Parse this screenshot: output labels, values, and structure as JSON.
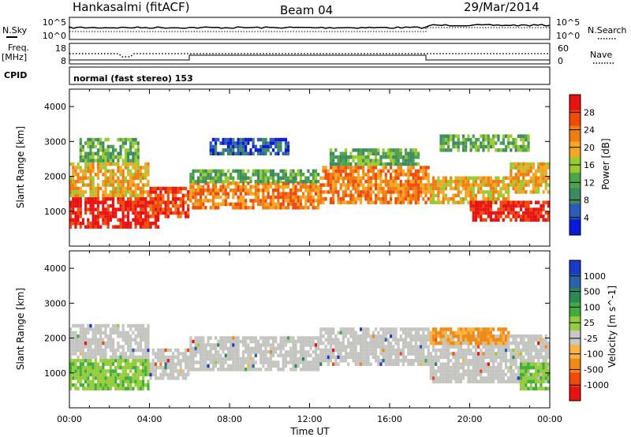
{
  "header": {
    "station": "Hankasalmi (fitACF)",
    "beam": "Beam 04",
    "date": "29/Mar/2014"
  },
  "strip_panels": {
    "noise_left_label": "N.Sky",
    "noise_left_ticks": [
      "10^5",
      "10^0"
    ],
    "noise_right_label": "N.Search",
    "noise_right_ticks": [
      "10^5",
      "10^0"
    ],
    "freq_left_label_1": "Freq.",
    "freq_left_label_2": "[MHz]",
    "freq_left_ticks": [
      "18",
      "8"
    ],
    "freq_right_label": "Nave",
    "freq_right_ticks": [
      "60",
      "0"
    ],
    "cpid_label": "CPID",
    "cpid_text": "normal (fast stereo) 153"
  },
  "colors": {
    "power_scale": [
      "#0a18d8",
      "#2b5bb8",
      "#3d8a62",
      "#4fa34a",
      "#9acb2e",
      "#f5a623",
      "#f07c10",
      "#f04a0a",
      "#e81212"
    ],
    "velocity_scale": [
      "#e81212",
      "#f04a0a",
      "#f08a14",
      "#f5b445",
      "#c8c8c8",
      "#96cc3c",
      "#3fae3f",
      "#2a8a55",
      "#2a64a8",
      "#1a3ac8"
    ],
    "ground_scatter": "#c4c4c0"
  },
  "chart_data": [
    {
      "type": "heatmap",
      "panel": "power",
      "ylabel": "Slant Range [km]",
      "y_ticks": [
        "1000",
        "2000",
        "3000",
        "4000"
      ],
      "ylim": [
        0,
        4500
      ],
      "x_ticks": [
        "00:00",
        "04:00",
        "08:00",
        "12:00",
        "16:00",
        "20:00",
        "00:00"
      ],
      "xlim_hours": [
        0,
        24
      ],
      "colorbar_label": "Power [dB]",
      "colorbar_ticks": [
        "4",
        "8",
        "12",
        "16",
        "20",
        "24",
        "28"
      ],
      "colorbar_range": [
        0,
        30
      ],
      "bands": [
        {
          "t0": 0,
          "t1": 4.5,
          "r0": 500,
          "r1": 1400,
          "level": 8
        },
        {
          "t0": 0,
          "t1": 4,
          "r0": 1400,
          "r1": 2400,
          "level": 5
        },
        {
          "t0": 0.5,
          "t1": 3.5,
          "r0": 2400,
          "r1": 3100,
          "level": 3
        },
        {
          "t0": 4,
          "t1": 6,
          "r0": 800,
          "r1": 1700,
          "level": 7
        },
        {
          "t0": 6,
          "t1": 12.5,
          "r0": 1050,
          "r1": 1800,
          "level": 6
        },
        {
          "t0": 6,
          "t1": 12.5,
          "r0": 1800,
          "r1": 2200,
          "level": 3
        },
        {
          "t0": 7,
          "t1": 11,
          "r0": 2600,
          "r1": 3100,
          "level": 1
        },
        {
          "t0": 12.5,
          "t1": 18,
          "r0": 1200,
          "r1": 2300,
          "level": 6
        },
        {
          "t0": 13,
          "t1": 17.5,
          "r0": 2300,
          "r1": 2800,
          "level": 3
        },
        {
          "t0": 18,
          "t1": 22,
          "r0": 1200,
          "r1": 2000,
          "level": 5
        },
        {
          "t0": 20,
          "t1": 24,
          "r0": 700,
          "r1": 1300,
          "level": 8
        },
        {
          "t0": 22,
          "t1": 24,
          "r0": 1500,
          "r1": 2400,
          "level": 5
        },
        {
          "t0": 18.5,
          "t1": 23,
          "r0": 2700,
          "r1": 3200,
          "level": 3
        }
      ]
    },
    {
      "type": "heatmap",
      "panel": "velocity",
      "ylabel": "Slant Range [km]",
      "y_ticks": [
        "1000",
        "2000",
        "3000",
        "4000"
      ],
      "ylim": [
        0,
        4500
      ],
      "x_ticks": [
        "00:00",
        "04:00",
        "08:00",
        "12:00",
        "16:00",
        "20:00",
        "00:00"
      ],
      "xlim_hours": [
        0,
        24
      ],
      "xlabel": "Time UT",
      "colorbar_label": "Velocity [m s^-1]",
      "colorbar_ticks": [
        "1000",
        "500",
        "100",
        "25",
        "-25",
        "-100",
        "-500",
        "-1000"
      ],
      "bands": [
        {
          "t0": 0,
          "t1": 4,
          "r0": 500,
          "r1": 1400,
          "kind": "green"
        },
        {
          "t0": 0,
          "t1": 4,
          "r0": 1400,
          "r1": 2400,
          "kind": "grey"
        },
        {
          "t0": 4,
          "t1": 6,
          "r0": 800,
          "r1": 1700,
          "kind": "grey"
        },
        {
          "t0": 6,
          "t1": 12.5,
          "r0": 1050,
          "r1": 2000,
          "kind": "grey"
        },
        {
          "t0": 12.5,
          "t1": 18,
          "r0": 1200,
          "r1": 2300,
          "kind": "grey"
        },
        {
          "t0": 18,
          "t1": 24,
          "r0": 700,
          "r1": 2100,
          "kind": "grey"
        },
        {
          "t0": 18,
          "t1": 22,
          "r0": 1800,
          "r1": 2300,
          "kind": "orange"
        },
        {
          "t0": 22.5,
          "t1": 24,
          "r0": 500,
          "r1": 1300,
          "kind": "green"
        }
      ]
    }
  ]
}
